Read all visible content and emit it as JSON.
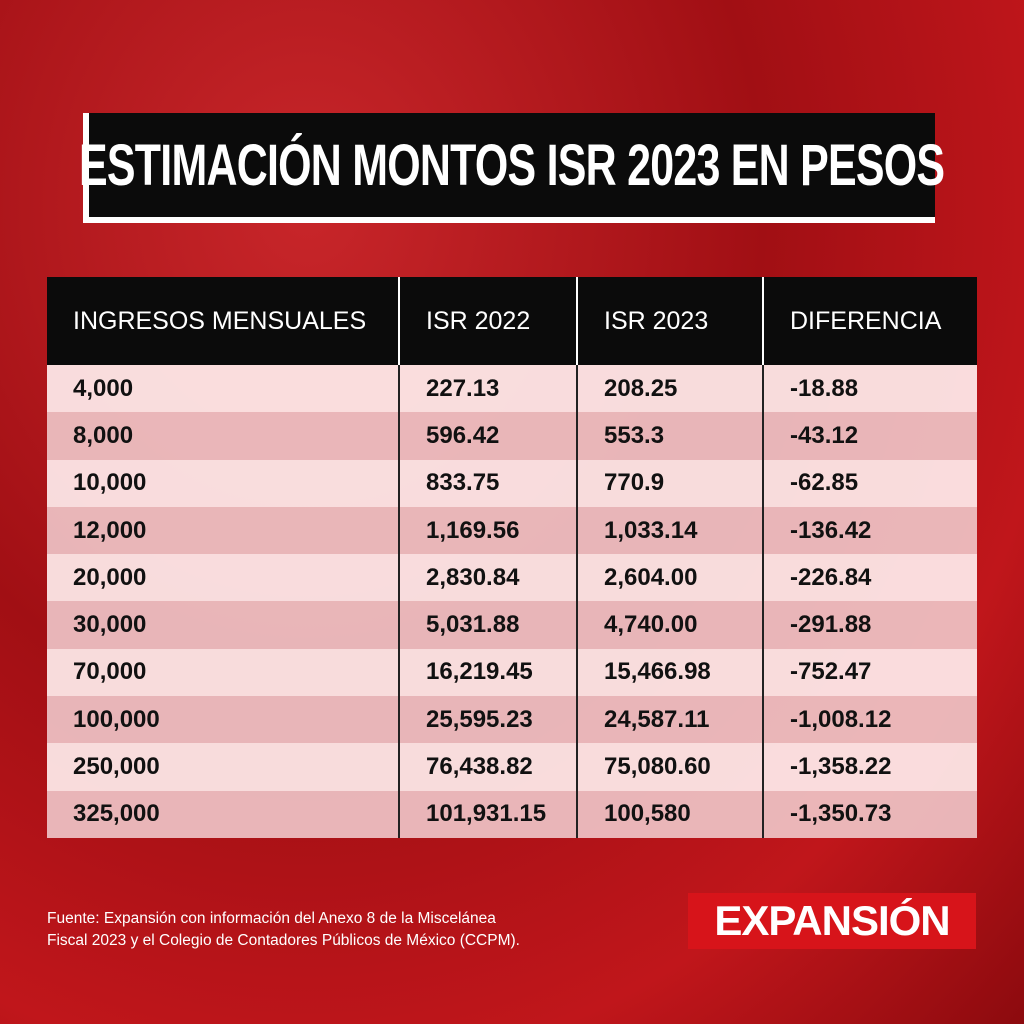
{
  "header": {
    "title": "ESTIMACIÓN MONTOS ISR 2023 EN PESOS"
  },
  "table": {
    "columns": [
      "INGRESOS MENSUALES",
      "ISR 2022",
      "ISR 2023",
      "DIFERENCIA"
    ],
    "rows": [
      [
        "4,000",
        "227.13",
        "208.25",
        "-18.88"
      ],
      [
        "8,000",
        "596.42",
        "553.3",
        "-43.12"
      ],
      [
        "10,000",
        "833.75",
        "770.9",
        "-62.85"
      ],
      [
        "12,000",
        "1,169.56",
        "1,033.14",
        "-136.42"
      ],
      [
        "20,000",
        "2,830.84",
        "2,604.00",
        "-226.84"
      ],
      [
        "30,000",
        "5,031.88",
        "4,740.00",
        "-291.88"
      ],
      [
        "70,000",
        "16,219.45",
        "15,466.98",
        "-752.47"
      ],
      [
        "100,000",
        "25,595.23",
        "24,587.11",
        "-1,008.12"
      ],
      [
        "250,000",
        "76,438.82",
        "75,080.60",
        "-1,358.22"
      ],
      [
        "325,000",
        "101,931.15",
        "100,580",
        "-1,350.73"
      ]
    ]
  },
  "footer": {
    "source": [
      "Fuente: Expansión con información del Anexo 8 de la Miscelánea",
      "Fiscal 2023 y el Colegio de Contadores Públicos de México (CCPM)."
    ],
    "logo": "EXPANSIÓN"
  }
}
